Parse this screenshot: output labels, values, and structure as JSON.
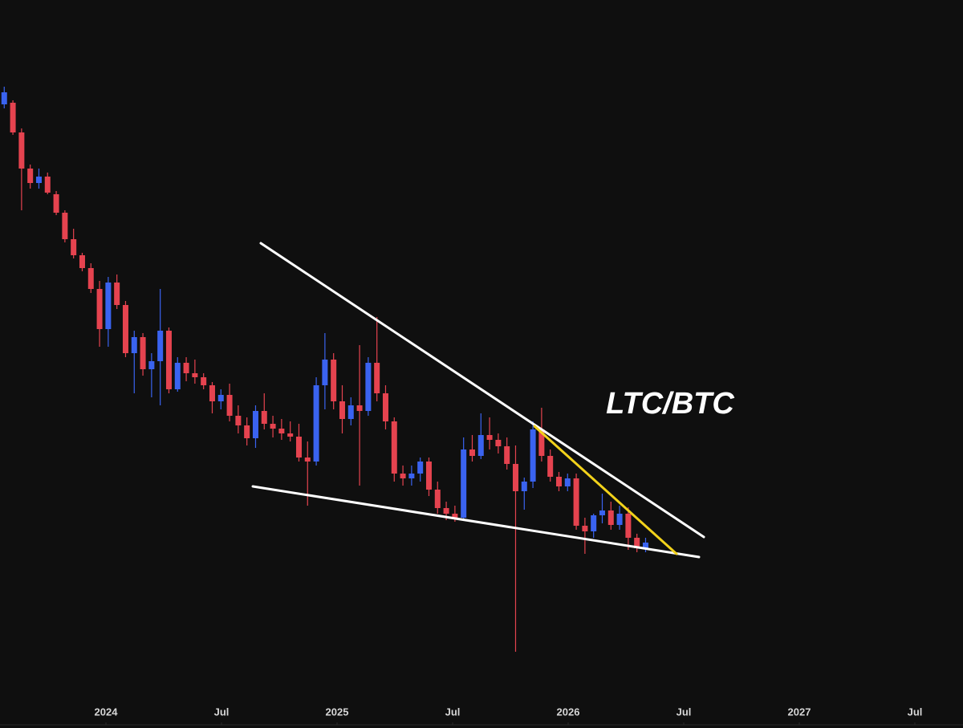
{
  "chart_data": {
    "type": "candlestick",
    "title": "LTC/BTC",
    "up_color": "#3a63f0",
    "down_color": "#e5434f",
    "xlim": [
      2023.5417,
      2027.7083
    ],
    "xticks": [
      {
        "value": 2024,
        "label": "2024"
      },
      {
        "value": 2024.5,
        "label": "Jul"
      },
      {
        "value": 2025,
        "label": "2025"
      },
      {
        "value": 2025.5,
        "label": "Jul"
      },
      {
        "value": 2026,
        "label": "2026"
      },
      {
        "value": 2026.5,
        "label": "Jul"
      },
      {
        "value": 2027,
        "label": "2027"
      },
      {
        "value": 2027.5,
        "label": "Jul"
      }
    ],
    "ylim": [
      0,
      870
    ],
    "x": [
      2023.56,
      2023.5975,
      2023.635,
      2023.6725,
      2023.71,
      2023.7475,
      2023.785,
      2023.8225,
      2023.86,
      2023.8975,
      2023.935,
      2023.9725,
      2024.01,
      2024.0475,
      2024.085,
      2024.1225,
      2024.16,
      2024.1975,
      2024.235,
      2024.2725,
      2024.31,
      2024.3475,
      2024.385,
      2024.4225,
      2024.46,
      2024.4975,
      2024.535,
      2024.5725,
      2024.61,
      2024.6475,
      2024.685,
      2024.7225,
      2024.76,
      2024.7975,
      2024.835,
      2024.8725,
      2024.91,
      2024.9475,
      2024.985,
      2025.0225,
      2025.06,
      2025.0975,
      2025.135,
      2025.1725,
      2025.21,
      2025.2475,
      2025.285,
      2025.3225,
      2025.36,
      2025.3975,
      2025.435,
      2025.4725,
      2025.51,
      2025.5475,
      2025.585,
      2025.6225,
      2025.66,
      2025.6975,
      2025.735,
      2025.7725,
      2025.81,
      2025.8475,
      2025.885,
      2025.9225,
      2025.96,
      2025.9975,
      2026.035,
      2026.0725,
      2026.11,
      2026.1475,
      2026.185,
      2026.2225,
      2026.26,
      2026.2975,
      2026.335
    ],
    "open": [
      740,
      742,
      705,
      660,
      642,
      650,
      628,
      605,
      572,
      552,
      536,
      510,
      460,
      518,
      490,
      430,
      450,
      410,
      420,
      458,
      385,
      418,
      405,
      400,
      390,
      370,
      378,
      352,
      340,
      324,
      358,
      342,
      336,
      330,
      326,
      300,
      295,
      390,
      422,
      370,
      348,
      365,
      358,
      418,
      380,
      345,
      280,
      274,
      280,
      295,
      260,
      237,
      230,
      225,
      310,
      302,
      328,
      322,
      314,
      292,
      258,
      270,
      335,
      302,
      276,
      264,
      274,
      215,
      208,
      228,
      234,
      216,
      230,
      200,
      187
    ],
    "high": [
      762,
      745,
      710,
      665,
      660,
      655,
      632,
      608,
      585,
      555,
      542,
      520,
      525,
      528,
      495,
      458,
      455,
      430,
      510,
      462,
      425,
      425,
      422,
      405,
      394,
      385,
      392,
      365,
      350,
      365,
      380,
      352,
      348,
      345,
      342,
      320,
      400,
      455,
      430,
      390,
      375,
      440,
      425,
      475,
      390,
      350,
      290,
      290,
      300,
      300,
      270,
      245,
      240,
      325,
      328,
      355,
      350,
      330,
      325,
      315,
      275,
      345,
      362,
      310,
      282,
      280,
      280,
      225,
      230,
      255,
      245,
      240,
      238,
      205,
      200
    ],
    "low": [
      735,
      702,
      608,
      635,
      635,
      628,
      602,
      568,
      548,
      532,
      505,
      438,
      438,
      485,
      425,
      380,
      402,
      375,
      365,
      380,
      382,
      395,
      392,
      385,
      355,
      360,
      345,
      330,
      315,
      312,
      335,
      325,
      322,
      320,
      295,
      240,
      290,
      360,
      360,
      330,
      340,
      265,
      352,
      370,
      335,
      270,
      265,
      265,
      270,
      252,
      230,
      222,
      220,
      222,
      295,
      298,
      310,
      305,
      285,
      58,
      235,
      262,
      295,
      270,
      258,
      258,
      210,
      180,
      200,
      218,
      210,
      210,
      185,
      182,
      182
    ],
    "close": [
      755,
      705,
      660,
      642,
      650,
      630,
      605,
      572,
      552,
      536,
      510,
      460,
      518,
      490,
      430,
      450,
      410,
      420,
      458,
      385,
      418,
      405,
      400,
      390,
      370,
      378,
      352,
      340,
      324,
      358,
      342,
      336,
      330,
      326,
      300,
      295,
      390,
      422,
      370,
      348,
      365,
      358,
      418,
      380,
      345,
      280,
      274,
      280,
      295,
      260,
      237,
      230,
      225,
      310,
      302,
      328,
      322,
      314,
      292,
      258,
      270,
      335,
      302,
      276,
      264,
      274,
      215,
      208,
      228,
      234,
      216,
      230,
      200,
      187,
      194
    ]
  }
}
